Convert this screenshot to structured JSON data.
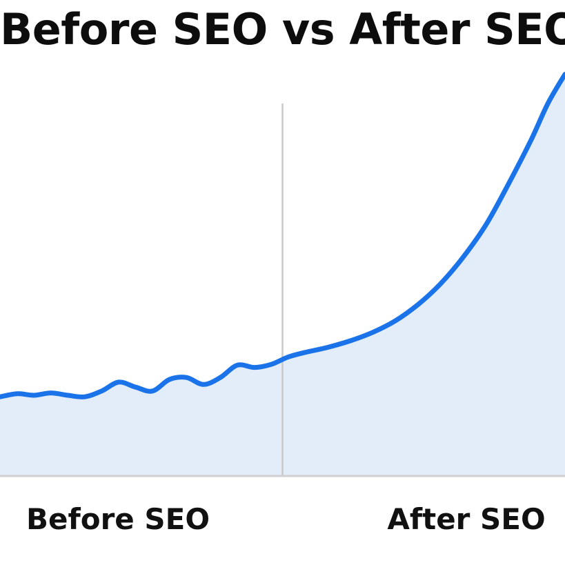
{
  "chart_data": {
    "type": "area",
    "title": "Before SEO vs After SEO",
    "xlabel": "",
    "ylabel": "",
    "grid": false,
    "legend": "none",
    "period_labels": [
      "Before SEO",
      "After SEO"
    ],
    "divider_x": 50,
    "xlim": [
      0,
      100
    ],
    "ylim": [
      0,
      100
    ],
    "series": [
      {
        "color": "#1a73e8",
        "fill": "#e3ecf9",
        "x": [
          0,
          3,
          6,
          9,
          12,
          15,
          18,
          21,
          24,
          27,
          30,
          33,
          36,
          39,
          42,
          45,
          48,
          51,
          54,
          58,
          62,
          66,
          70,
          74,
          78,
          82,
          86,
          90,
          94,
          97,
          100
        ],
        "y": [
          20.5,
          21.3,
          20.9,
          21.5,
          20.9,
          20.5,
          22.0,
          24.3,
          23.0,
          22.0,
          25.0,
          25.5,
          23.7,
          25.5,
          28.7,
          28.1,
          28.9,
          30.8,
          32.0,
          33.3,
          35.0,
          37.2,
          40.2,
          44.4,
          49.8,
          56.7,
          65.0,
          75.6,
          87.0,
          96.5,
          104
        ]
      }
    ]
  },
  "colors": {
    "line": "#1a73e8",
    "fill": "#e3ecf9",
    "divider": "#c9c9c9",
    "baseline": "#d0d0d0",
    "text": "#111111"
  }
}
